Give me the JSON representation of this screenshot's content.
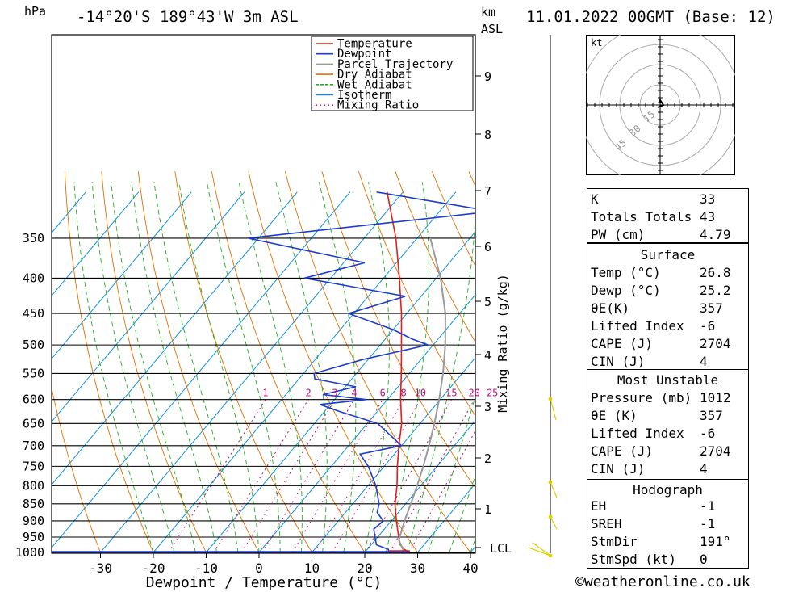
{
  "header": {
    "pressure_unit": "hPa",
    "location": "-14°20'S  189°43'W  3m  ASL",
    "height_unit_km": "km",
    "height_unit_asl": "ASL",
    "datetime": "11.01.2022  00GMT  (Base: 12)"
  },
  "axes": {
    "xlabel": "Dewpoint / Temperature (°C)",
    "ylabel_right": "Mixing Ratio (g/kg)",
    "pressure_ticks": [
      350,
      400,
      450,
      500,
      550,
      600,
      650,
      700,
      750,
      800,
      850,
      900,
      950,
      1000
    ],
    "temp_ticks": [
      -30,
      -20,
      -10,
      0,
      10,
      20,
      30,
      40
    ],
    "km_ticks": [
      "9",
      "8",
      "7",
      "6",
      "5",
      "4",
      "3",
      "2",
      "1"
    ],
    "lcl_label": "LCL",
    "mixing_ratio_labels": [
      "1",
      "2",
      "3",
      "4",
      "6",
      "8",
      "10",
      "15",
      "20",
      "25"
    ]
  },
  "legend": {
    "items": [
      {
        "label": "Temperature",
        "color": "#e0201c"
      },
      {
        "label": "Dewpoint",
        "color": "#1e3ccc"
      },
      {
        "label": "Parcel Trajectory",
        "color": "#9a9a9a"
      },
      {
        "label": "Dry Adiabat",
        "color": "#e07000"
      },
      {
        "label": "Wet Adiabat",
        "color": "#20b020"
      },
      {
        "label": "Isotherm",
        "color": "#1090e0"
      },
      {
        "label": "Mixing Ratio",
        "color": "#c0107a"
      }
    ]
  },
  "hodograph": {
    "unit": "kt",
    "ring_labels": [
      "15",
      "30",
      "45"
    ]
  },
  "indices": {
    "general": [
      {
        "label": "K",
        "value": "33"
      },
      {
        "label": "Totals Totals",
        "value": "43"
      },
      {
        "label": "PW (cm)",
        "value": "4.79"
      }
    ],
    "surface_title": "Surface",
    "surface": [
      {
        "label": "Temp (°C)",
        "value": "26.8"
      },
      {
        "label": "Dewp (°C)",
        "value": "25.2"
      },
      {
        "label": "θE(K)",
        "value": "357"
      },
      {
        "label": "Lifted Index",
        "value": "-6"
      },
      {
        "label": "CAPE (J)",
        "value": "2704"
      },
      {
        "label": "CIN (J)",
        "value": "4"
      }
    ],
    "unstable_title": "Most Unstable",
    "unstable": [
      {
        "label": "Pressure (mb)",
        "value": "1012"
      },
      {
        "label": "θE (K)",
        "value": "357"
      },
      {
        "label": "Lifted Index",
        "value": "-6"
      },
      {
        "label": "CAPE (J)",
        "value": "2704"
      },
      {
        "label": "CIN (J)",
        "value": "4"
      }
    ],
    "hodograph_title": "Hodograph",
    "hodo": [
      {
        "label": "EH",
        "value": "-1"
      },
      {
        "label": "SREH",
        "value": "-1"
      },
      {
        "label": "StmDir",
        "value": "191°"
      },
      {
        "label": "StmSpd (kt)",
        "value": "0"
      }
    ]
  },
  "footer": {
    "credit": "©weatheronline.co.uk"
  },
  "chart_data": {
    "type": "line",
    "title": "-14°20'S  189°43'W  3m  ASL",
    "xlabel": "Dewpoint / Temperature (°C)",
    "ylabel": "hPa",
    "xlim": [
      -40,
      40
    ],
    "ylim": [
      1000,
      300
    ],
    "skew": "skew-T log-p",
    "series": [
      {
        "name": "Temperature",
        "color": "#e0201c",
        "pressure": [
          1000,
          990,
          975,
          950,
          925,
          900,
          875,
          850,
          800,
          750,
          700,
          650,
          600,
          550,
          500,
          450,
          400,
          350,
          300
        ],
        "values": [
          28.5,
          27.0,
          25.5,
          24.0,
          22.5,
          21.0,
          19.5,
          18.0,
          15.5,
          12.5,
          9.5,
          6.5,
          2.5,
          -1.5,
          -6.0,
          -11.0,
          -17.0,
          -24.0,
          -33.0
        ]
      },
      {
        "name": "Dewpoint",
        "color": "#1e3ccc",
        "pressure": [
          1000,
          990,
          975,
          950,
          925,
          900,
          875,
          850,
          800,
          750,
          720,
          700,
          650,
          625,
          610,
          600,
          590,
          575,
          560,
          550,
          525,
          500,
          490,
          475,
          450,
          425,
          400,
          380,
          350,
          320,
          300
        ],
        "values": [
          24.5,
          24.0,
          21.0,
          19.5,
          18.0,
          18.5,
          16.0,
          15.0,
          11.5,
          7.0,
          3.5,
          10.0,
          2.0,
          -7.0,
          -12.0,
          -4.0,
          -13.0,
          -8.0,
          -17.0,
          -18.0,
          -11.0,
          -1.0,
          -5.0,
          -10.0,
          -21.0,
          -13.0,
          -35.0,
          -26.0,
          -52.0,
          -10.0,
          -35.0
        ]
      },
      {
        "name": "Parcel Trajectory",
        "color": "#9a9a9a",
        "pressure": [
          1000,
          960,
          900,
          850,
          800,
          750,
          700,
          650,
          600,
          550,
          500,
          450,
          400,
          350
        ],
        "values": [
          27.5,
          24.5,
          22.5,
          21.0,
          19.3,
          17.4,
          15.2,
          12.7,
          9.8,
          6.4,
          2.3,
          -2.7,
          -9.2,
          -17.5
        ]
      }
    ]
  }
}
